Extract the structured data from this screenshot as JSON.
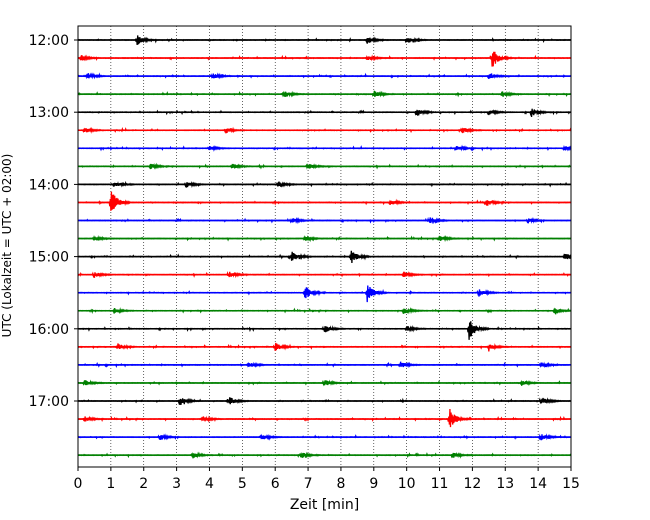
{
  "chart_data": {
    "type": "line",
    "title": "",
    "xlabel": "Zeit  [min]",
    "ylabel": "UTC (Lokalzeit = UTC + 02:00)",
    "xlim": [
      0,
      15
    ],
    "x_ticks": [
      0,
      1,
      2,
      3,
      4,
      5,
      6,
      7,
      8,
      9,
      10,
      11,
      12,
      13,
      14,
      15
    ],
    "x_tick_labels": [
      "0",
      "1",
      "2",
      "3",
      "4",
      "5",
      "6",
      "7",
      "8",
      "9",
      "10",
      "11",
      "12",
      "13",
      "14",
      "15"
    ],
    "y_tick_labels": [
      "12:00",
      "13:00",
      "14:00",
      "15:00",
      "16:00",
      "17:00"
    ],
    "y_tick_rows": [
      0,
      4,
      8,
      12,
      16,
      20
    ],
    "grid": "vertical dotted lines at each minute",
    "trace_colors": [
      "#000000",
      "#ff0000",
      "#0000ff",
      "#008000"
    ],
    "rows": [
      {
        "start": "12:00",
        "events": [
          [
            1.8,
            0.5
          ],
          [
            8.8,
            0.4
          ],
          [
            10.0,
            0.4
          ]
        ]
      },
      {
        "start": "12:15",
        "events": [
          [
            12.6,
            1.0
          ],
          [
            0.1,
            0.3
          ],
          [
            8.8,
            0.3
          ]
        ]
      },
      {
        "start": "12:30",
        "events": [
          [
            0.3,
            0.3
          ],
          [
            4.1,
            0.3
          ],
          [
            12.5,
            0.3
          ]
        ]
      },
      {
        "start": "12:45",
        "events": [
          [
            6.3,
            0.3
          ],
          [
            9.0,
            0.35
          ],
          [
            12.9,
            0.3
          ]
        ]
      },
      {
        "start": "13:00",
        "events": [
          [
            10.3,
            0.45
          ],
          [
            13.8,
            0.45
          ],
          [
            12.5,
            0.3
          ]
        ]
      },
      {
        "start": "13:15",
        "events": [
          [
            0.2,
            0.3
          ],
          [
            4.5,
            0.3
          ],
          [
            11.7,
            0.3
          ]
        ]
      },
      {
        "start": "13:30",
        "events": [
          [
            11.5,
            0.3
          ],
          [
            4.0,
            0.25
          ],
          [
            14.8,
            0.25
          ]
        ]
      },
      {
        "start": "13:45",
        "events": [
          [
            2.2,
            0.3
          ],
          [
            4.7,
            0.3
          ],
          [
            7.0,
            0.3
          ]
        ]
      },
      {
        "start": "14:00",
        "events": [
          [
            1.1,
            0.3
          ],
          [
            3.3,
            0.3
          ],
          [
            6.1,
            0.3
          ]
        ]
      },
      {
        "start": "14:15",
        "events": [
          [
            1.0,
            1.4
          ],
          [
            12.4,
            0.4
          ],
          [
            9.5,
            0.3
          ]
        ]
      },
      {
        "start": "14:30",
        "events": [
          [
            6.5,
            0.3
          ],
          [
            10.7,
            0.35
          ],
          [
            13.7,
            0.25
          ]
        ]
      },
      {
        "start": "14:45",
        "events": [
          [
            0.5,
            0.3
          ],
          [
            11.0,
            0.3
          ],
          [
            6.9,
            0.25
          ]
        ]
      },
      {
        "start": "15:00",
        "events": [
          [
            6.5,
            0.55
          ],
          [
            8.3,
            0.75
          ],
          [
            14.8,
            0.4
          ]
        ]
      },
      {
        "start": "15:15",
        "events": [
          [
            0.5,
            0.3
          ],
          [
            4.6,
            0.35
          ],
          [
            9.9,
            0.3
          ]
        ]
      },
      {
        "start": "15:30",
        "events": [
          [
            6.9,
            0.75
          ],
          [
            8.8,
            0.9
          ],
          [
            12.2,
            0.4
          ]
        ]
      },
      {
        "start": "15:45",
        "events": [
          [
            1.1,
            0.3
          ],
          [
            9.9,
            0.35
          ],
          [
            14.5,
            0.3
          ]
        ]
      },
      {
        "start": "16:00",
        "events": [
          [
            11.9,
            1.1
          ],
          [
            7.5,
            0.4
          ],
          [
            10.0,
            0.35
          ]
        ]
      },
      {
        "start": "16:15",
        "events": [
          [
            1.2,
            0.35
          ],
          [
            6.0,
            0.45
          ],
          [
            12.5,
            0.35
          ]
        ]
      },
      {
        "start": "16:30",
        "events": [
          [
            5.2,
            0.3
          ],
          [
            9.8,
            0.35
          ],
          [
            14.1,
            0.3
          ]
        ]
      },
      {
        "start": "16:45",
        "events": [
          [
            0.2,
            0.3
          ],
          [
            7.5,
            0.35
          ],
          [
            13.5,
            0.3
          ]
        ]
      },
      {
        "start": "17:00",
        "events": [
          [
            3.1,
            0.45
          ],
          [
            4.6,
            0.45
          ],
          [
            14.1,
            0.4
          ]
        ]
      },
      {
        "start": "17:15",
        "events": [
          [
            11.3,
            1.1
          ],
          [
            3.8,
            0.3
          ],
          [
            0.2,
            0.3
          ]
        ]
      },
      {
        "start": "17:30",
        "events": [
          [
            5.6,
            0.3
          ],
          [
            2.5,
            0.3
          ],
          [
            14.1,
            0.3
          ]
        ]
      },
      {
        "start": "17:45",
        "events": [
          [
            3.5,
            0.3
          ],
          [
            6.8,
            0.3
          ],
          [
            11.4,
            0.3
          ]
        ]
      }
    ]
  }
}
